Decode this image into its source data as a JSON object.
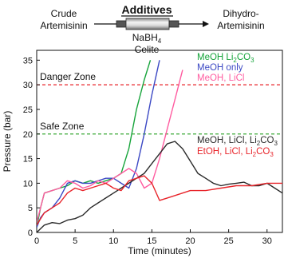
{
  "scheme": {
    "reactant_line1": "Crude",
    "reactant_line2": "Artemisinin",
    "additives_label": "Additives",
    "product_line1": "Dihydro-",
    "product_line2": "Artemisinin",
    "reagent_line1": "NaBH",
    "reagent_line1_sub": "4",
    "reagent_line2": "Celite"
  },
  "chart_data": {
    "type": "line",
    "xlabel": "Time (minutes)",
    "ylabel": "Pressure (bar)",
    "xlim": [
      0,
      32
    ],
    "ylim": [
      0,
      37
    ],
    "xticks": [
      0,
      5,
      10,
      15,
      20,
      25,
      30
    ],
    "yticks": [
      0,
      5,
      10,
      15,
      20,
      25,
      30,
      35
    ],
    "grid": false,
    "annotations": [
      {
        "text": "Danger Zone",
        "y": 30,
        "color": "#e8242a",
        "style": "dashed"
      },
      {
        "text": "Safe Zone",
        "y": 20,
        "color": "#3aa935",
        "style": "dashed"
      }
    ],
    "series": [
      {
        "label_parts": [
          [
            "MeOH Li",
            ""
          ],
          [
            "2",
            "sub"
          ],
          [
            "CO",
            ""
          ],
          [
            "3",
            "sub"
          ]
        ],
        "color": "#16a43a",
        "x": [
          0,
          0.5,
          1,
          2,
          3,
          4,
          5,
          6,
          7,
          8,
          9,
          10,
          11,
          12,
          13,
          14,
          14.8
        ],
        "y": [
          1,
          5,
          8,
          8.5,
          9,
          9.5,
          10.5,
          10,
          10.5,
          10,
          10.5,
          11,
          12,
          17,
          25,
          31,
          35
        ]
      },
      {
        "label_parts": [
          [
            "MeOH only",
            ""
          ]
        ],
        "color": "#3b48c4",
        "x": [
          0,
          0.5,
          1,
          2,
          3,
          4,
          5,
          6,
          7,
          8,
          9,
          10,
          11,
          12,
          13,
          14,
          15,
          16
        ],
        "y": [
          1,
          3,
          4,
          5,
          7,
          10,
          10.5,
          10,
          10,
          10.5,
          11,
          11,
          10,
          9,
          13,
          20,
          28,
          35
        ]
      },
      {
        "label_parts": [
          [
            "MeOH, LiCl",
            ""
          ]
        ],
        "color": "#ff5ca0",
        "x": [
          0,
          1,
          2,
          3,
          4,
          5,
          6,
          7,
          8,
          9,
          10,
          11,
          12,
          13,
          14,
          15,
          16,
          17,
          18,
          19
        ],
        "y": [
          2,
          8,
          8.5,
          9,
          10.5,
          10,
          9,
          9.5,
          10.5,
          10,
          11,
          12,
          13,
          12,
          9,
          10,
          15,
          21,
          27,
          33
        ]
      },
      {
        "label_parts": [
          [
            "MeOH, LiCl, Li",
            ""
          ],
          [
            "2",
            "sub"
          ],
          [
            "CO",
            ""
          ],
          [
            "3",
            "sub"
          ]
        ],
        "color": "#2a2a2a",
        "x": [
          0,
          1,
          2,
          3,
          4,
          5,
          6,
          7,
          8,
          9,
          10,
          11,
          12,
          13,
          14,
          15,
          16,
          17,
          18,
          19,
          20,
          21,
          22,
          23,
          24,
          25,
          26,
          27,
          28,
          29,
          30,
          31,
          32
        ],
        "y": [
          0,
          1.5,
          2,
          1.8,
          2.5,
          2.8,
          3.5,
          5,
          6,
          7,
          8,
          9,
          10,
          11,
          12,
          14,
          16,
          18,
          18.5,
          17,
          14.5,
          12,
          11,
          10,
          9.5,
          9.8,
          10,
          10.2,
          9.5,
          9.5,
          10,
          9,
          8
        ]
      },
      {
        "label_parts": [
          [
            "EtOH, LiCl, Li",
            ""
          ],
          [
            "2",
            "sub"
          ],
          [
            "CO",
            ""
          ],
          [
            "3",
            "sub"
          ]
        ],
        "color": "#e8242a",
        "x": [
          0,
          1,
          2,
          3,
          4,
          5,
          6,
          7,
          8,
          9,
          10,
          11,
          12,
          13,
          14,
          15,
          16,
          17,
          18,
          19,
          20,
          22,
          24,
          26,
          28,
          30,
          32
        ],
        "y": [
          1.5,
          4,
          5,
          6,
          8,
          9,
          8.5,
          9,
          9.5,
          10,
          9,
          8.5,
          10.5,
          11,
          11.5,
          10,
          6.5,
          7,
          7.5,
          8,
          8.5,
          8.5,
          9,
          9.5,
          9.5,
          10,
          10
        ]
      }
    ]
  }
}
